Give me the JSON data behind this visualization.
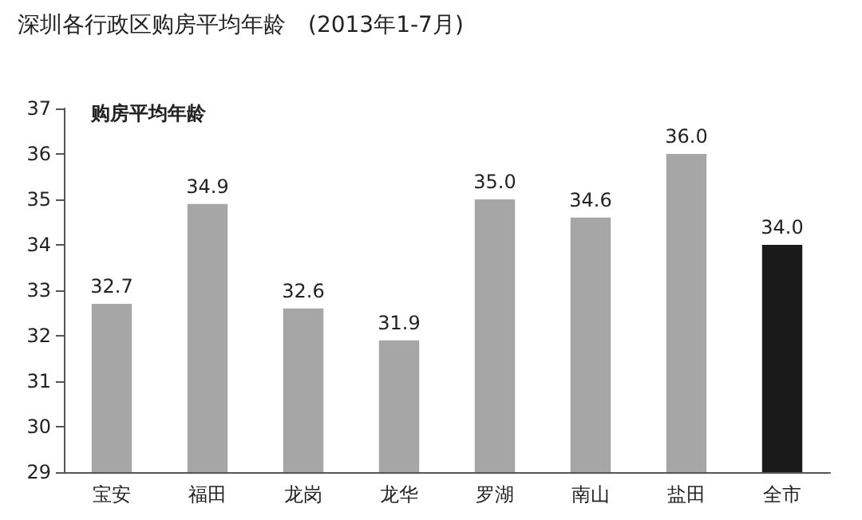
{
  "chart_data": {
    "type": "bar",
    "title": "深圳各行政区购房平均年龄　(2013年1-7月)",
    "ylabel": "购房平均年龄",
    "categories": [
      "宝安",
      "福田",
      "龙岗",
      "龙华",
      "罗湖",
      "南山",
      "盐田",
      "全市"
    ],
    "values": [
      32.7,
      34.9,
      32.6,
      31.9,
      35.0,
      34.6,
      36.0,
      34.0
    ],
    "colors": [
      "#a6a6a6",
      "#a6a6a6",
      "#a6a6a6",
      "#a6a6a6",
      "#a6a6a6",
      "#a6a6a6",
      "#a6a6a6",
      "#1a1a1a"
    ],
    "value_labels": [
      "32.7",
      "34.9",
      "32.6",
      "31.9",
      "35.0",
      "34.6",
      "36.0",
      "34.0"
    ],
    "ylim": [
      29,
      37
    ],
    "yticks": [
      29,
      30,
      31,
      32,
      33,
      34,
      35,
      36,
      37
    ],
    "grid": false
  }
}
